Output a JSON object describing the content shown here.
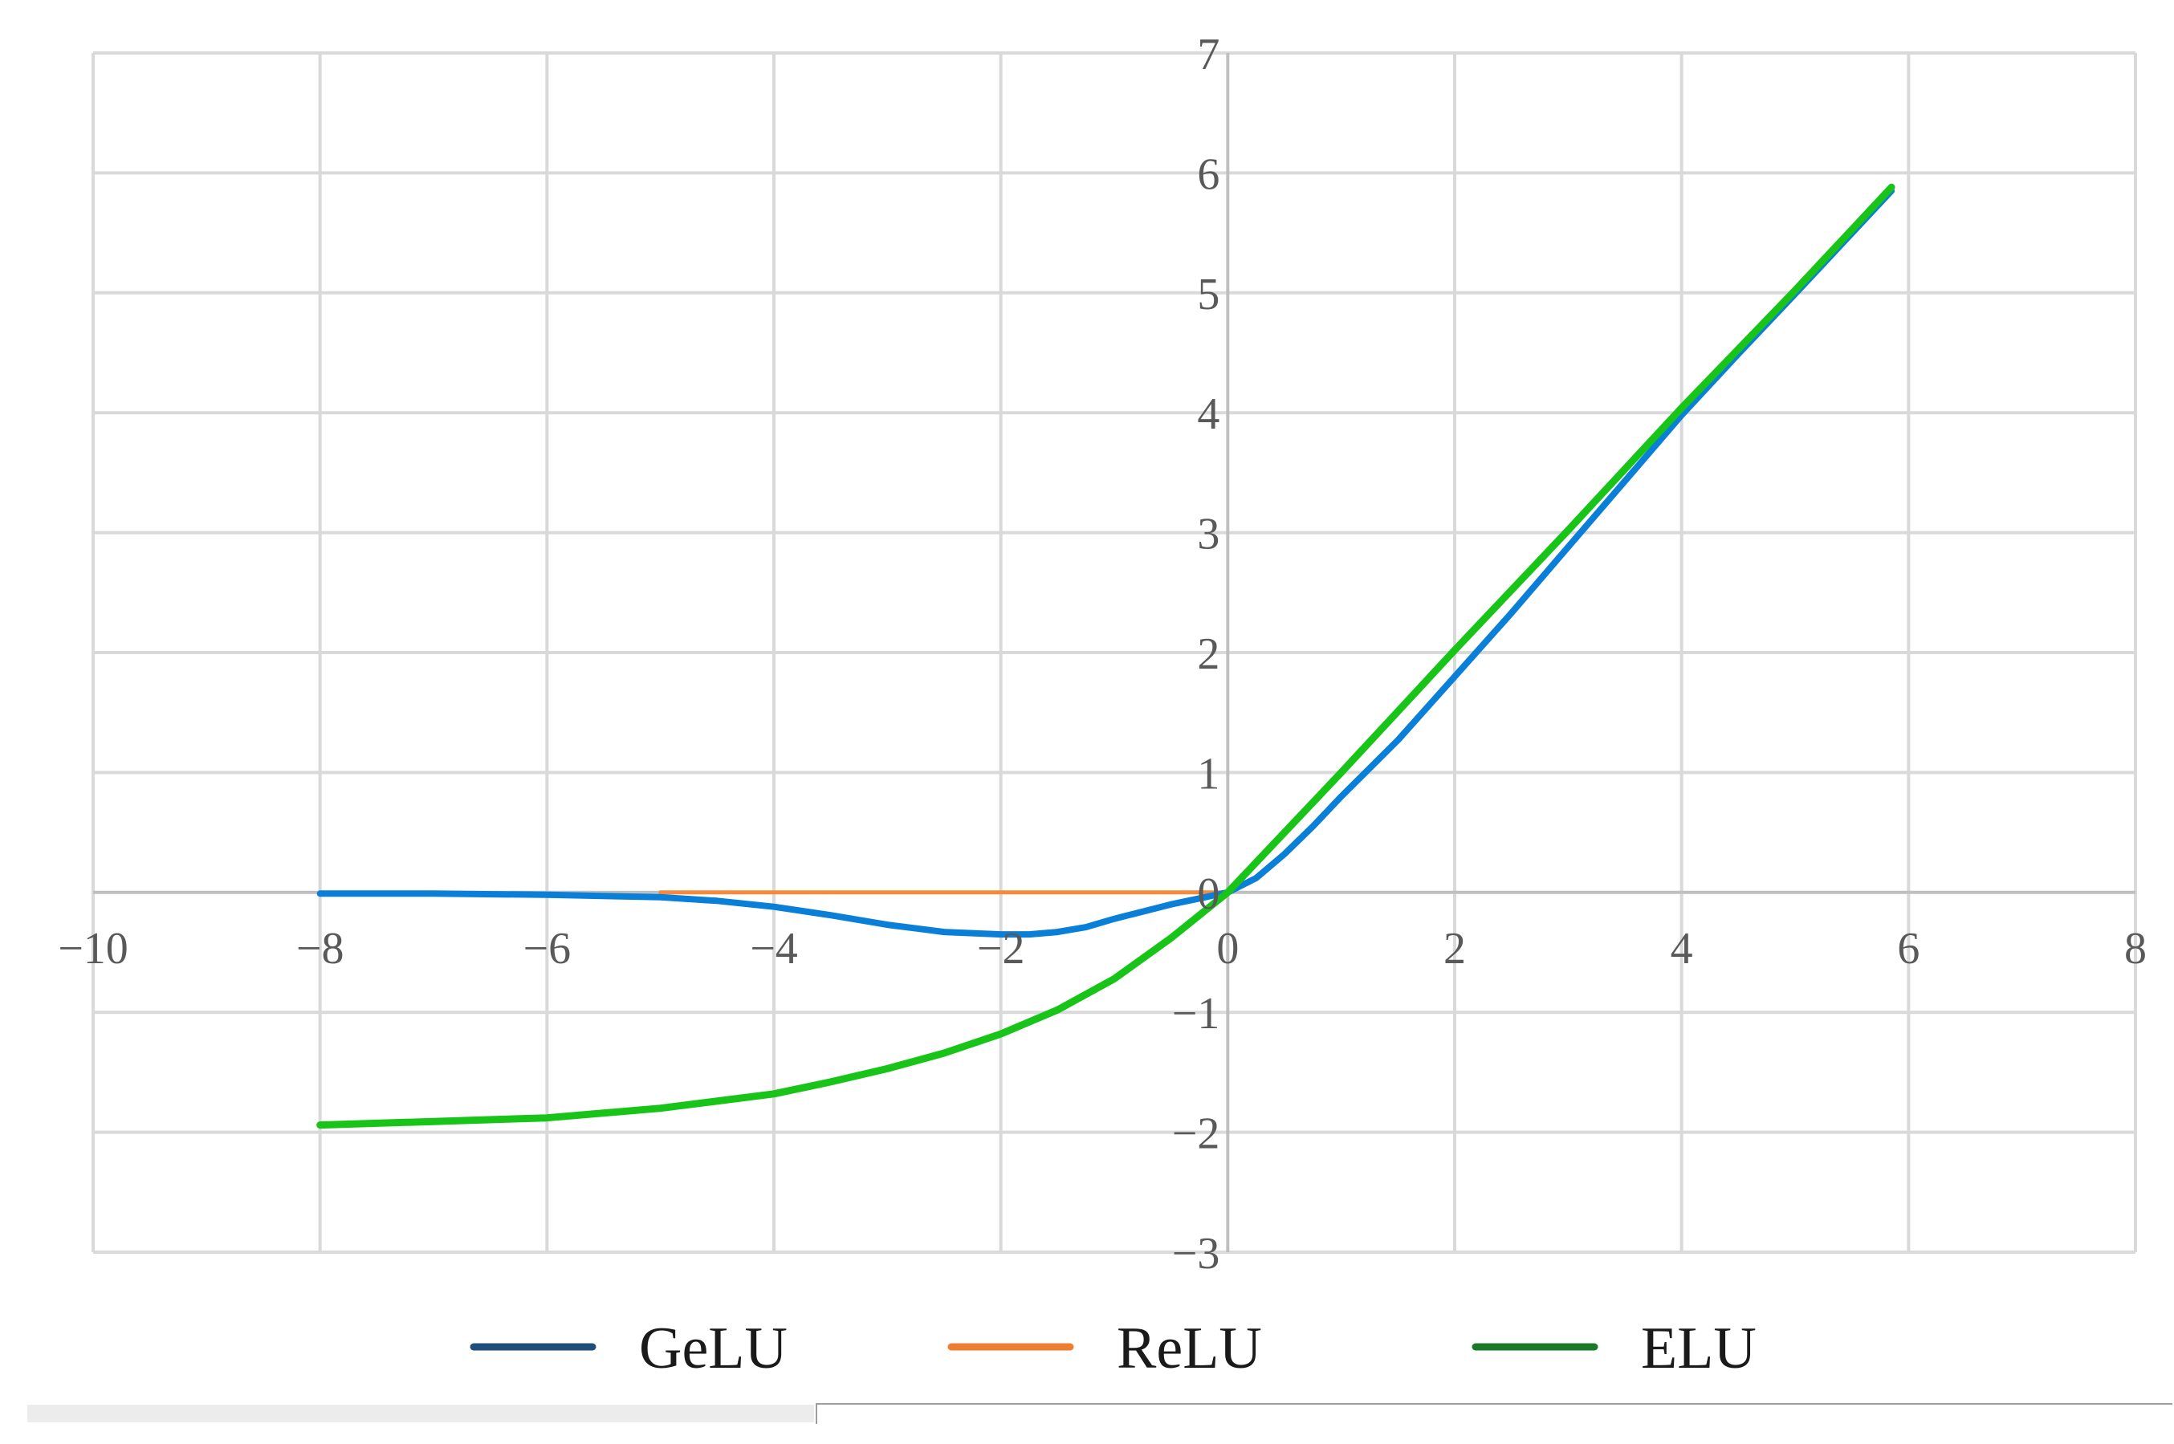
{
  "chart_data": {
    "type": "line",
    "title": "",
    "xlabel": "",
    "ylabel": "",
    "xlim": [
      -10,
      8
    ],
    "ylim": [
      -3,
      7
    ],
    "xticks": [
      -10,
      -8,
      -6,
      -4,
      -2,
      0,
      2,
      4,
      6,
      8
    ],
    "yticks": [
      -3,
      -2,
      -1,
      0,
      1,
      2,
      3,
      4,
      5,
      6,
      7
    ],
    "xtick_labels": [
      "−10",
      "−8",
      "−6",
      "−4",
      "−2",
      "0",
      "2",
      "4",
      "6",
      "8"
    ],
    "ytick_labels": [
      "−3",
      "−2",
      "−1",
      "0",
      "1",
      "2",
      "3",
      "4",
      "5",
      "6",
      "7"
    ],
    "grid": true,
    "legend_position": "bottom",
    "series": [
      {
        "name": "GeLU",
        "color": "#0a7fd8",
        "legend_color": "#1f4e79",
        "x": [
          -8,
          -7,
          -6,
          -5,
          -4.5,
          -4,
          -3.5,
          -3,
          -2.5,
          -2,
          -1.75,
          -1.5,
          -1.25,
          -1,
          -0.75,
          -0.5,
          -0.25,
          0,
          0.25,
          0.5,
          0.75,
          1,
          1.5,
          2,
          2.5,
          3,
          3.5,
          4,
          4.5,
          5,
          5.85
        ],
        "y": [
          -0.01,
          -0.01,
          -0.02,
          -0.04,
          -0.07,
          -0.12,
          -0.19,
          -0.27,
          -0.33,
          -0.35,
          -0.35,
          -0.33,
          -0.29,
          -0.22,
          -0.16,
          -0.1,
          -0.05,
          0,
          0.12,
          0.32,
          0.55,
          0.8,
          1.27,
          1.8,
          2.33,
          2.88,
          3.43,
          3.98,
          4.49,
          4.99,
          5.85
        ]
      },
      {
        "name": "ReLU",
        "color": "#f58a3c",
        "legend_color": "#ed7d31",
        "x": [
          -5,
          -4,
          -3,
          -2,
          -1,
          0
        ],
        "y": [
          0,
          0,
          0,
          0,
          0,
          0
        ]
      },
      {
        "name": "ELU",
        "color": "#19c419",
        "legend_color": "#1a7a2a",
        "x": [
          -8,
          -7,
          -6,
          -5,
          -4,
          -3.5,
          -3,
          -2.5,
          -2,
          -1.5,
          -1,
          -0.5,
          0,
          0.5,
          1,
          2,
          3,
          4,
          5,
          5.85
        ],
        "y": [
          -1.94,
          -1.91,
          -1.88,
          -1.8,
          -1.68,
          -1.58,
          -1.47,
          -1.34,
          -1.18,
          -0.98,
          -0.72,
          -0.38,
          0,
          0.5,
          1,
          2.02,
          3.02,
          4.04,
          5.02,
          5.88
        ]
      }
    ]
  }
}
